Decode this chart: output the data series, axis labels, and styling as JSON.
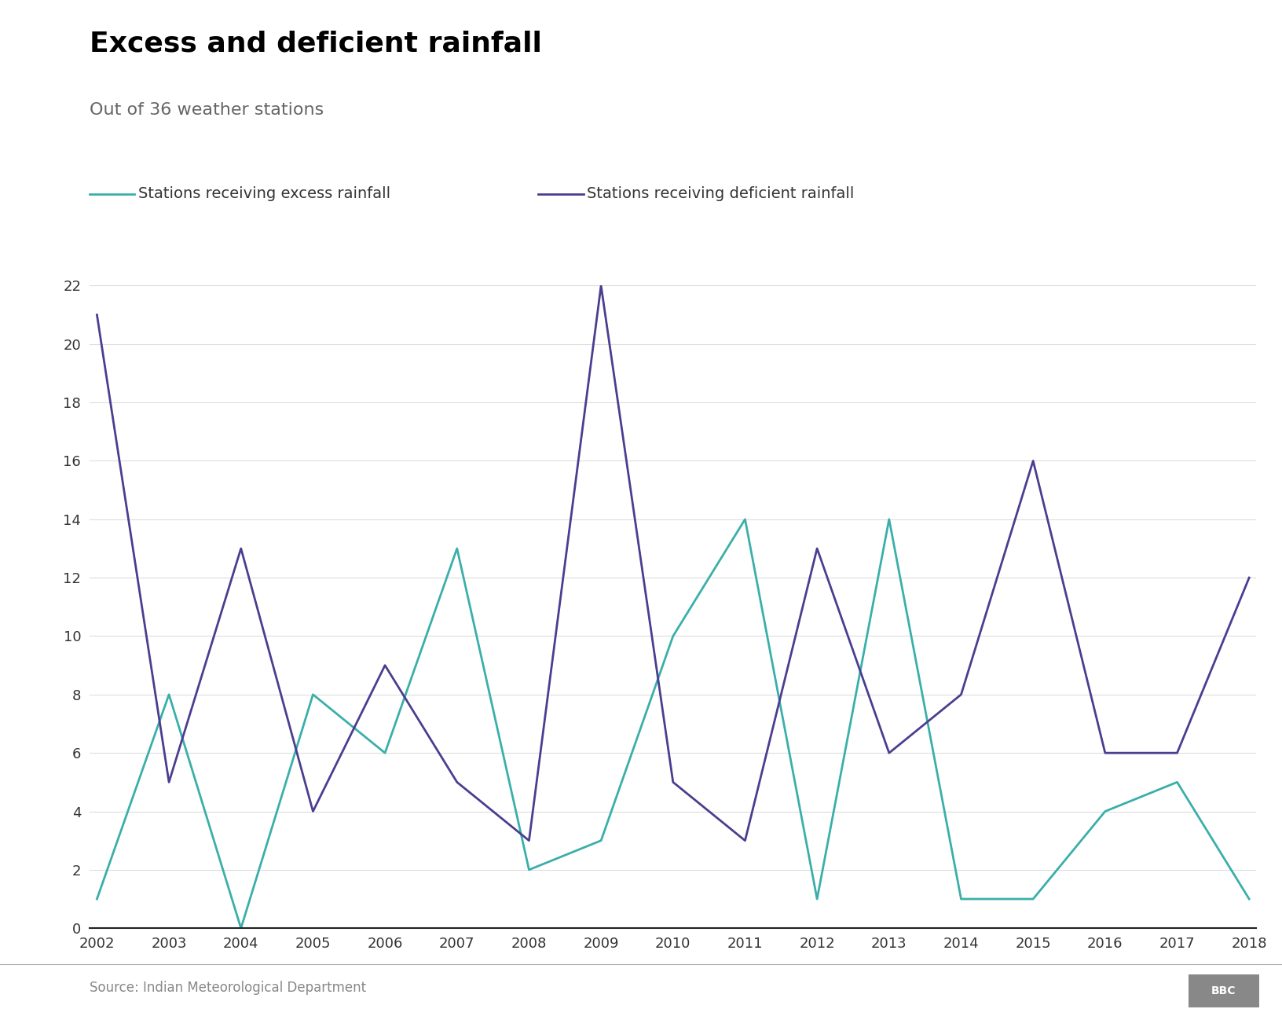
{
  "title": "Excess and deficient rainfall",
  "subtitle": "Out of 36 weather stations",
  "source": "Source: Indian Meteorological Department",
  "years": [
    2002,
    2003,
    2004,
    2005,
    2006,
    2007,
    2008,
    2009,
    2010,
    2011,
    2012,
    2013,
    2014,
    2015,
    2016,
    2017,
    2018
  ],
  "excess": [
    1,
    8,
    0,
    8,
    6,
    13,
    2,
    3,
    10,
    14,
    1,
    14,
    1,
    1,
    4,
    5,
    1
  ],
  "deficient": [
    21,
    5,
    13,
    4,
    9,
    5,
    3,
    22,
    5,
    3,
    13,
    6,
    8,
    16,
    6,
    6,
    12
  ],
  "excess_color": "#3aafa9",
  "deficient_color": "#4b3d8f",
  "excess_label": "Stations receiving excess rainfall",
  "deficient_label": "Stations receiving deficient rainfall",
  "ylim": [
    0,
    22
  ],
  "yticks": [
    0,
    2,
    4,
    6,
    8,
    10,
    12,
    14,
    16,
    18,
    20,
    22
  ],
  "title_fontsize": 26,
  "subtitle_fontsize": 16,
  "legend_fontsize": 14,
  "axis_fontsize": 13,
  "source_fontsize": 12,
  "background_color": "#ffffff",
  "line_width": 2.0
}
